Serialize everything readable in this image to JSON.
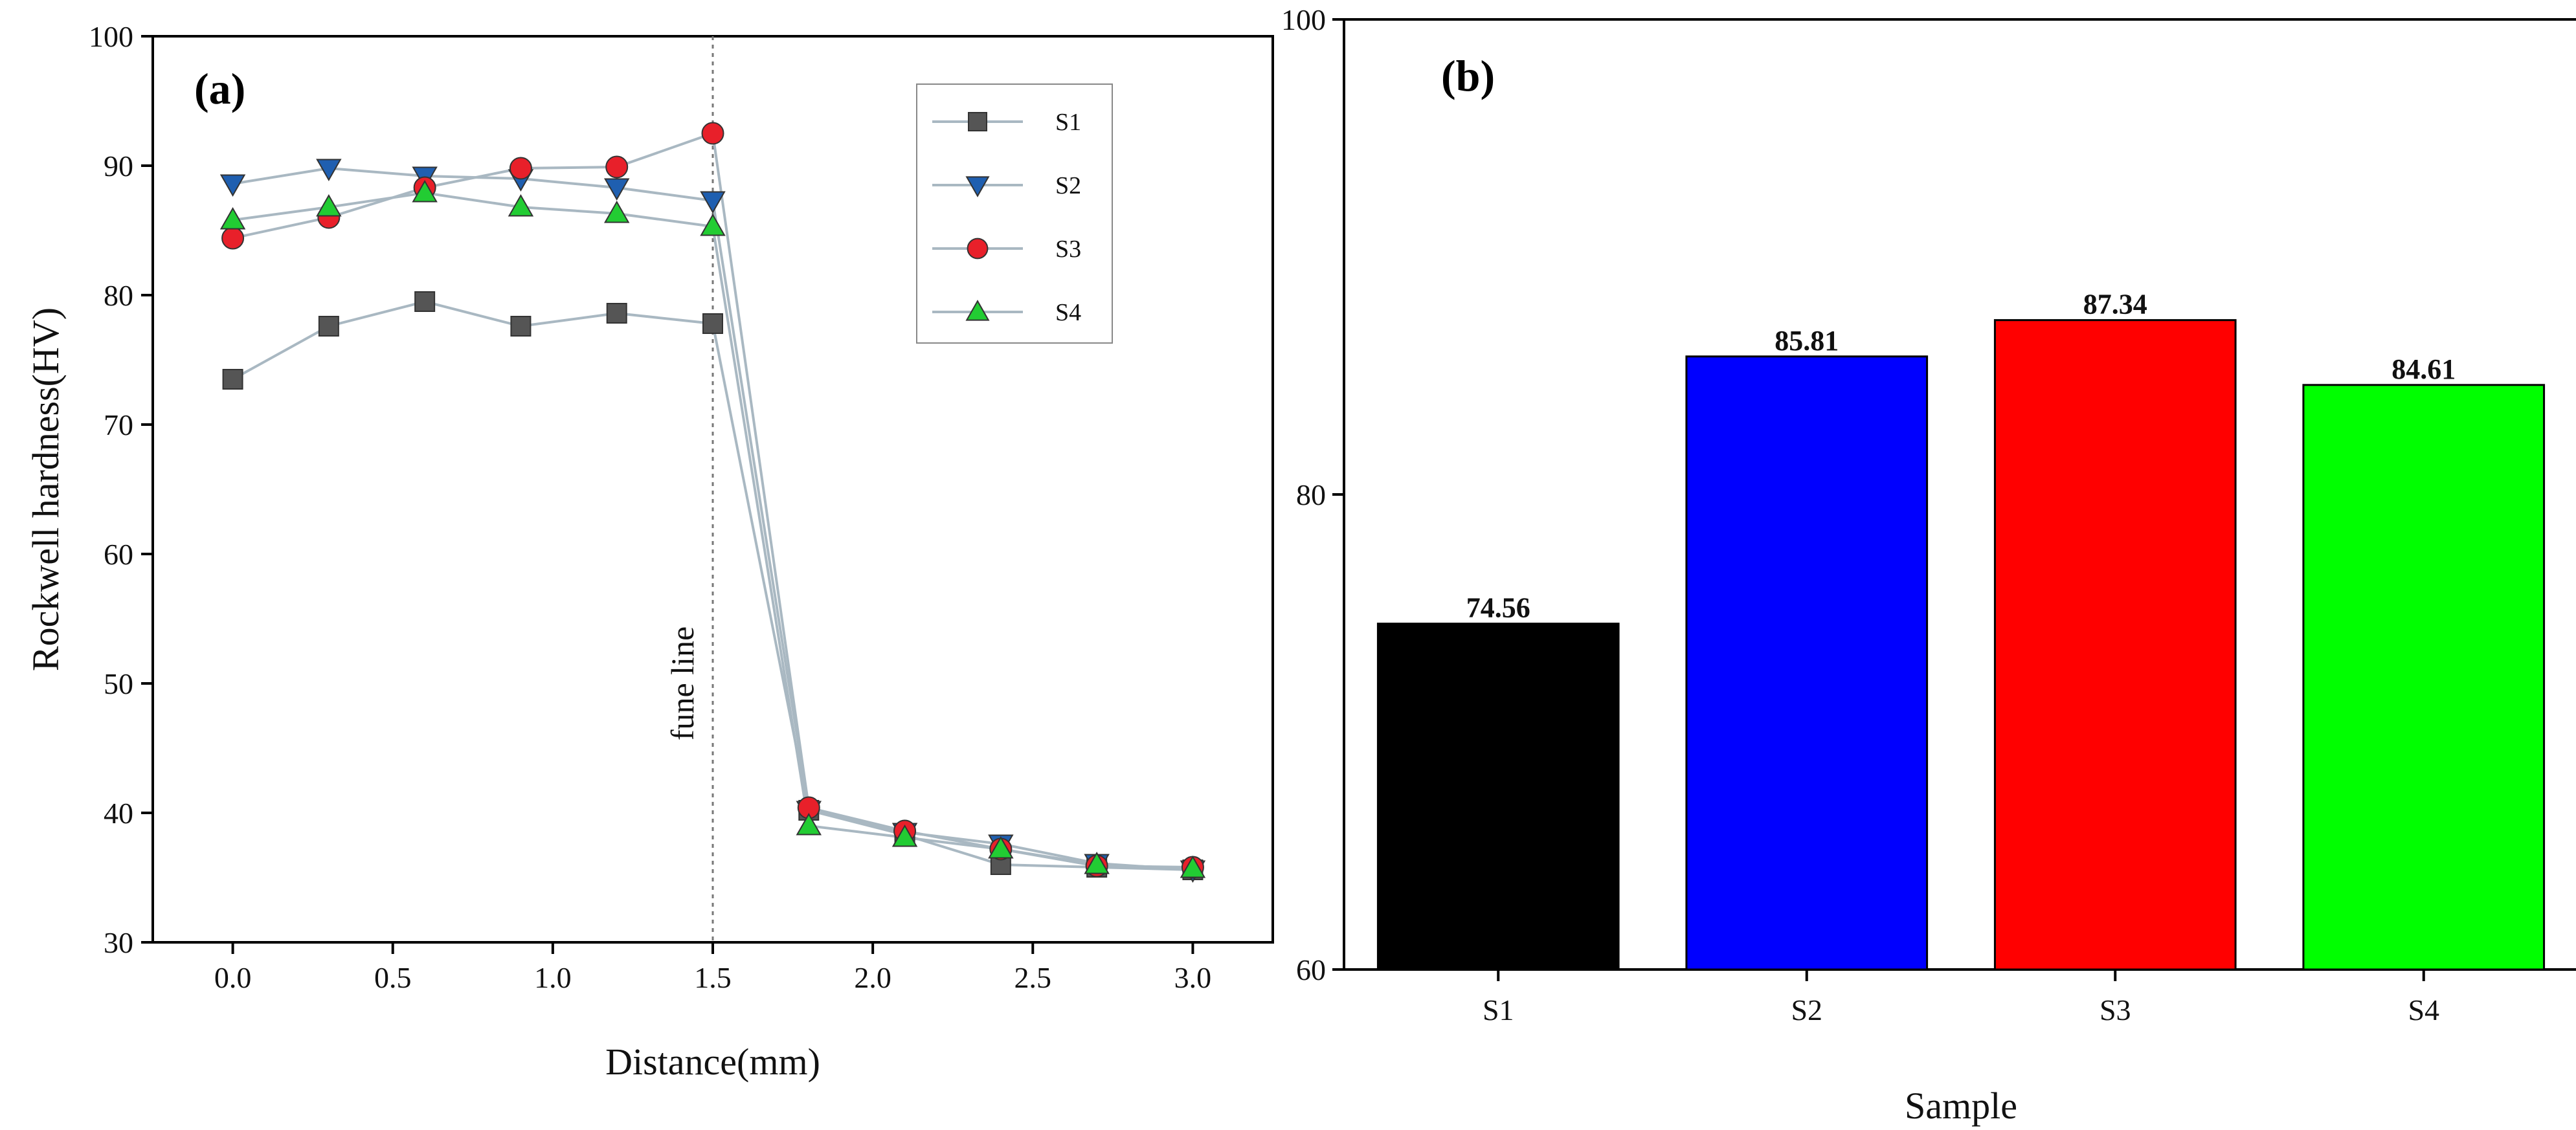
{
  "chart_data": [
    {
      "type": "line",
      "panel_label": "(a)",
      "xlabel": "Distance(mm)",
      "ylabel": "Rockwell hardness(HV)",
      "xlim": [
        -0.25,
        3.25
      ],
      "ylim": [
        30,
        100
      ],
      "xticks": [
        "0.0",
        "0.5",
        "1.0",
        "1.5",
        "2.0",
        "2.5",
        "3.0"
      ],
      "yticks": [
        "30",
        "40",
        "50",
        "60",
        "70",
        "80",
        "90",
        "100"
      ],
      "x": [
        0.0,
        0.3,
        0.6,
        0.9,
        1.2,
        1.5,
        1.8,
        2.1,
        2.4,
        2.7,
        3.0
      ],
      "series": [
        {
          "name": "S1",
          "marker": "square",
          "color": "#555555",
          "values": [
            73.5,
            77.6,
            79.5,
            77.6,
            78.6,
            77.8,
            40.2,
            38.3,
            36.0,
            35.8,
            35.6
          ]
        },
        {
          "name": "S2",
          "marker": "triangle-down",
          "color": "#1f5fb0",
          "values": [
            88.6,
            89.8,
            89.2,
            89.0,
            88.3,
            87.3,
            40.2,
            38.5,
            37.6,
            36.1,
            35.6
          ]
        },
        {
          "name": "S3",
          "marker": "circle",
          "color": "#e8202a",
          "values": [
            84.4,
            86.0,
            88.3,
            89.8,
            89.9,
            92.5,
            40.4,
            38.6,
            37.2,
            35.9,
            35.8
          ]
        },
        {
          "name": "S4",
          "marker": "triangle-up",
          "color": "#22cc33",
          "values": [
            85.8,
            86.8,
            87.9,
            86.8,
            86.3,
            85.3,
            39.0,
            38.1,
            37.2,
            36.0,
            35.7
          ]
        }
      ],
      "fuse_line": {
        "x": 1.5,
        "label": "fune line"
      },
      "legend": "top-right"
    },
    {
      "type": "bar",
      "panel_label": "(b)",
      "xlabel": "Sample",
      "ylabel": "",
      "ylim": [
        60,
        100
      ],
      "yticks": [
        "60",
        "80",
        "100"
      ],
      "categories": [
        "S1",
        "S2",
        "S3",
        "S4"
      ],
      "values": [
        74.56,
        85.81,
        87.34,
        84.61
      ],
      "value_labels": [
        "74.56",
        "85.81",
        "87.34",
        "84.61"
      ],
      "colors": [
        "#000000",
        "#0000ff",
        "#ff0000",
        "#00ff00"
      ]
    }
  ]
}
